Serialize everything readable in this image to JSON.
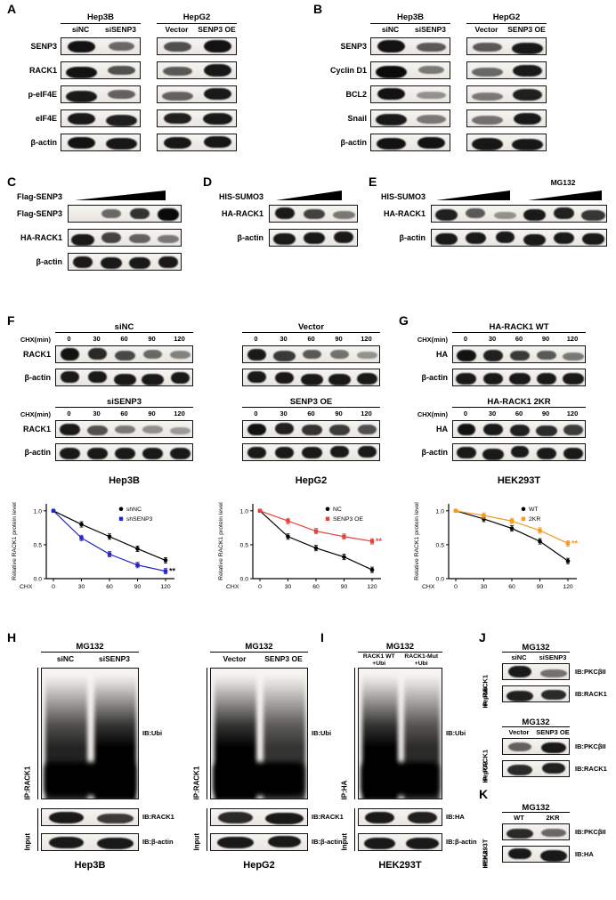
{
  "chart_data": [
    {
      "type": "line",
      "panel": "F-Hep3B",
      "xlabel": "CHX",
      "ylabel": "Relative RACK1 protein level",
      "x": [
        0,
        30,
        60,
        90,
        120
      ],
      "x_ticks": [
        "0",
        "30",
        "60",
        "90",
        "120"
      ],
      "y_ticks": [
        "0.0",
        "0.5",
        "1.0"
      ],
      "ylim": [
        0,
        1.05
      ],
      "series": [
        {
          "name": "shNC",
          "color": "#000000",
          "marker": "circle",
          "err": 0.04,
          "values": [
            1.0,
            0.8,
            0.62,
            0.44,
            0.27
          ]
        },
        {
          "name": "shSENP3",
          "color": "#2525c4",
          "marker": "square",
          "err": 0.04,
          "values": [
            1.0,
            0.6,
            0.36,
            0.2,
            0.11
          ]
        }
      ],
      "annotation": {
        "text": "**",
        "color": "#111111",
        "series": 1
      }
    },
    {
      "type": "line",
      "panel": "F-HepG2",
      "xlabel": "CHX",
      "ylabel": "Relative RACK1 protein level",
      "x": [
        0,
        30,
        60,
        90,
        120
      ],
      "x_ticks": [
        "0",
        "30",
        "60",
        "90",
        "120"
      ],
      "y_ticks": [
        "0.0",
        "0.5",
        "1.0"
      ],
      "ylim": [
        0,
        1.05
      ],
      "series": [
        {
          "name": "NC",
          "color": "#000000",
          "marker": "circle",
          "err": 0.04,
          "values": [
            1.0,
            0.62,
            0.45,
            0.32,
            0.13
          ]
        },
        {
          "name": "SENP3 OE",
          "color": "#e8413c",
          "marker": "square",
          "err": 0.04,
          "values": [
            1.0,
            0.85,
            0.7,
            0.62,
            0.55
          ]
        }
      ],
      "annotation": {
        "text": "**",
        "color": "#e8413c",
        "series": 1
      }
    },
    {
      "type": "line",
      "panel": "G-HEK293T",
      "xlabel": "CHX",
      "ylabel": "Relative RACK1 protein level",
      "x": [
        0,
        30,
        60,
        90,
        120
      ],
      "x_ticks": [
        "0",
        "30",
        "60",
        "90",
        "120"
      ],
      "y_ticks": [
        "0.0",
        "0.5",
        "1.0"
      ],
      "ylim": [
        0,
        1.05
      ],
      "series": [
        {
          "name": "WT",
          "color": "#000000",
          "marker": "circle",
          "err": 0.04,
          "values": [
            1.0,
            0.88,
            0.74,
            0.55,
            0.26
          ]
        },
        {
          "name": "2KR",
          "color": "#f59a23",
          "marker": "square",
          "err": 0.04,
          "values": [
            1.0,
            0.93,
            0.85,
            0.71,
            0.52
          ]
        }
      ],
      "annotation": {
        "text": "**",
        "color": "#f59a23",
        "series": 1
      }
    }
  ],
  "panels": {
    "A": {
      "label": "A",
      "row_labels": [
        "SENP3",
        "RACK1",
        "p-eIF4E",
        "eIF4E",
        "β-actin"
      ],
      "groups": [
        {
          "title": "Hep3B",
          "lanes": [
            "siNC",
            "siSENP3"
          ],
          "bands": [
            [
              0.95,
              0.4
            ],
            [
              0.95,
              0.55
            ],
            [
              0.9,
              0.45
            ],
            [
              0.9,
              0.85
            ],
            [
              0.95,
              0.92
            ]
          ]
        },
        {
          "title": "HepG2",
          "lanes": [
            "Vector",
            "SENP3 OE"
          ],
          "bands": [
            [
              0.55,
              0.95
            ],
            [
              0.5,
              0.92
            ],
            [
              0.45,
              0.9
            ],
            [
              0.85,
              0.9
            ],
            [
              0.92,
              0.92
            ]
          ]
        }
      ]
    },
    "B": {
      "label": "B",
      "row_labels": [
        "SENP3",
        "Cyclin D1",
        "BCL2",
        "Snail",
        "β-actin"
      ],
      "groups": [
        {
          "title": "Hep3B",
          "lanes": [
            "siNC",
            "siSENP3"
          ],
          "bands": [
            [
              0.95,
              0.5
            ],
            [
              1.0,
              0.3
            ],
            [
              0.95,
              0.15
            ],
            [
              0.9,
              0.3
            ],
            [
              0.95,
              0.95
            ]
          ]
        },
        {
          "title": "HepG2",
          "lanes": [
            "Vector",
            "SENP3 OE"
          ],
          "bands": [
            [
              0.5,
              0.9
            ],
            [
              0.4,
              0.9
            ],
            [
              0.3,
              0.85
            ],
            [
              0.35,
              0.9
            ],
            [
              0.92,
              0.92
            ]
          ]
        }
      ]
    },
    "C": {
      "label": "C",
      "wedge_label": "Flag-SENP3",
      "rows": [
        {
          "label": "Flag-SENP3",
          "bands": [
            0,
            0.4,
            0.75,
            1.0
          ]
        },
        {
          "label": "HA-RACK1",
          "bands": [
            0.9,
            0.65,
            0.45,
            0.3
          ]
        },
        {
          "label": "β-actin",
          "bands": [
            0.9,
            0.9,
            0.9,
            0.9
          ]
        }
      ]
    },
    "D": {
      "label": "D",
      "wedge_label": "HIS-SUMO3",
      "rows": [
        {
          "label": "HA-RACK1",
          "bands": [
            0.9,
            0.65,
            0.3
          ]
        },
        {
          "label": "β-actin",
          "bands": [
            0.9,
            0.9,
            0.9
          ]
        }
      ]
    },
    "E": {
      "label": "E",
      "wedge_label": "HIS-SUMO3",
      "wedge2_label": "MG132",
      "rows": [
        {
          "label": "HA-RACK1",
          "bands": [
            0.85,
            0.5,
            0.15,
            0.9,
            0.85,
            0.72
          ]
        },
        {
          "label": "β-actin",
          "bands": [
            0.9,
            0.9,
            0.9,
            0.9,
            0.9,
            0.9
          ]
        }
      ]
    },
    "F": {
      "label": "F",
      "chx_label": "CHX(min)",
      "times": [
        "0",
        "30",
        "60",
        "90",
        "120"
      ],
      "columns": [
        {
          "cell": "Hep3B",
          "groups": [
            {
              "title": "siNC",
              "rows": [
                {
                  "label": "RACK1",
                  "bands": [
                    0.95,
                    0.8,
                    0.6,
                    0.4,
                    0.25
                  ]
                },
                {
                  "label": "β-actin",
                  "bands": [
                    0.9,
                    0.9,
                    0.9,
                    0.9,
                    0.9
                  ]
                }
              ]
            },
            {
              "title": "siSENP3",
              "rows": [
                {
                  "label": "RACK1",
                  "bands": [
                    0.9,
                    0.55,
                    0.3,
                    0.16,
                    0.08
                  ]
                },
                {
                  "label": "β-actin",
                  "bands": [
                    0.9,
                    0.9,
                    0.9,
                    0.9,
                    0.9
                  ]
                }
              ]
            }
          ]
        },
        {
          "cell": "HepG2",
          "groups": [
            {
              "title": "Vector",
              "rows": [
                {
                  "label": "",
                  "bands": [
                    0.9,
                    0.7,
                    0.5,
                    0.35,
                    0.15
                  ]
                },
                {
                  "label": "",
                  "bands": [
                    0.9,
                    0.9,
                    0.9,
                    0.9,
                    0.9
                  ]
                }
              ]
            },
            {
              "title": "SENP3 OE",
              "rows": [
                {
                  "label": "",
                  "bands": [
                    0.95,
                    0.85,
                    0.75,
                    0.68,
                    0.55
                  ]
                },
                {
                  "label": "",
                  "bands": [
                    0.9,
                    0.9,
                    0.9,
                    0.9,
                    0.9
                  ]
                }
              ]
            }
          ]
        }
      ]
    },
    "G": {
      "label": "G",
      "chx_label": "CHX(min)",
      "times": [
        "0",
        "30",
        "60",
        "90",
        "120"
      ],
      "cell": "HEK293T",
      "groups": [
        {
          "title": "HA-RACK1 WT",
          "rows": [
            {
              "label": "HA",
              "bands": [
                0.95,
                0.85,
                0.7,
                0.5,
                0.3
              ]
            },
            {
              "label": "β-actin",
              "bands": [
                0.9,
                0.9,
                0.9,
                0.9,
                0.9
              ]
            }
          ]
        },
        {
          "title": "HA-RACK1 2KR",
          "rows": [
            {
              "label": "HA",
              "bands": [
                0.95,
                0.9,
                0.85,
                0.78,
                0.68
              ]
            },
            {
              "label": "β-actin",
              "bands": [
                0.9,
                0.9,
                0.9,
                0.9,
                0.9
              ]
            }
          ]
        }
      ]
    },
    "H": {
      "label": "H",
      "groups": [
        {
          "mg": "MG132",
          "lanes": [
            "siNC",
            "siSENP3"
          ],
          "ip": "IP:RACK1",
          "ib": "IB:Ubi",
          "smear": [
            0.85,
            1.0
          ],
          "input": "Input",
          "input_rows": [
            {
              "label": "IB:RACK1",
              "bands": [
                0.9,
                0.7
              ]
            },
            {
              "label": "IB:β-actin",
              "bands": [
                0.9,
                0.9
              ]
            }
          ],
          "cell": "Hep3B"
        },
        {
          "mg": "MG132",
          "lanes": [
            "Vector",
            "SENP3 OE"
          ],
          "ip": "IP:RACK1",
          "ib": "IB:Ubi",
          "smear": [
            1.0,
            0.78
          ],
          "input": "Input",
          "input_rows": [
            {
              "label": "IB:RACK1",
              "bands": [
                0.8,
                0.9
              ]
            },
            {
              "label": "IB:β-actin",
              "bands": [
                0.9,
                0.9
              ]
            }
          ],
          "cell": "HepG2"
        }
      ]
    },
    "I": {
      "label": "I",
      "group": {
        "mg": "MG132",
        "lanes": [
          [
            "RACK1 WT",
            "+Ubi"
          ],
          [
            "RACK1-Mut",
            "+Ubi"
          ]
        ],
        "ip": "IP:HA",
        "ib": "IB:Ubi",
        "smear": [
          1.0,
          0.82
        ],
        "input": "Input",
        "input_rows": [
          {
            "label": "IB:HA",
            "bands": [
              0.9,
              0.85
            ]
          },
          {
            "label": "IB:β-actin",
            "bands": [
              0.9,
              0.9
            ]
          }
        ],
        "cell": "HEK293T"
      }
    },
    "J": {
      "label": "J",
      "groups": [
        {
          "mg": "MG132",
          "lanes": [
            "siNC",
            "siSENP3"
          ],
          "side": [
            "Hep3B",
            "IP: RACK1"
          ],
          "rows": [
            {
              "label": "IB:PKCβII",
              "bands": [
                0.9,
                0.35
              ]
            },
            {
              "label": "IB:RACK1",
              "bands": [
                0.85,
                0.8
              ]
            }
          ]
        },
        {
          "mg": "MG132",
          "lanes": [
            "Vector",
            "SENP3 OE"
          ],
          "side": [
            "HepG2",
            "IP: RACK1"
          ],
          "rows": [
            {
              "label": "IB:PKCβII",
              "bands": [
                0.45,
                0.9
              ]
            },
            {
              "label": "IB:RACK1",
              "bands": [
                0.8,
                0.85
              ]
            }
          ]
        }
      ]
    },
    "K": {
      "label": "K",
      "mg": "MG132",
      "lanes": [
        "WT",
        "2KR"
      ],
      "side": [
        "HEK293T",
        "IP:HA"
      ],
      "rows": [
        {
          "label": "IB:PKCβII",
          "bands": [
            0.8,
            0.4
          ]
        },
        {
          "label": "IB:HA",
          "bands": [
            0.9,
            0.9
          ]
        }
      ]
    }
  }
}
